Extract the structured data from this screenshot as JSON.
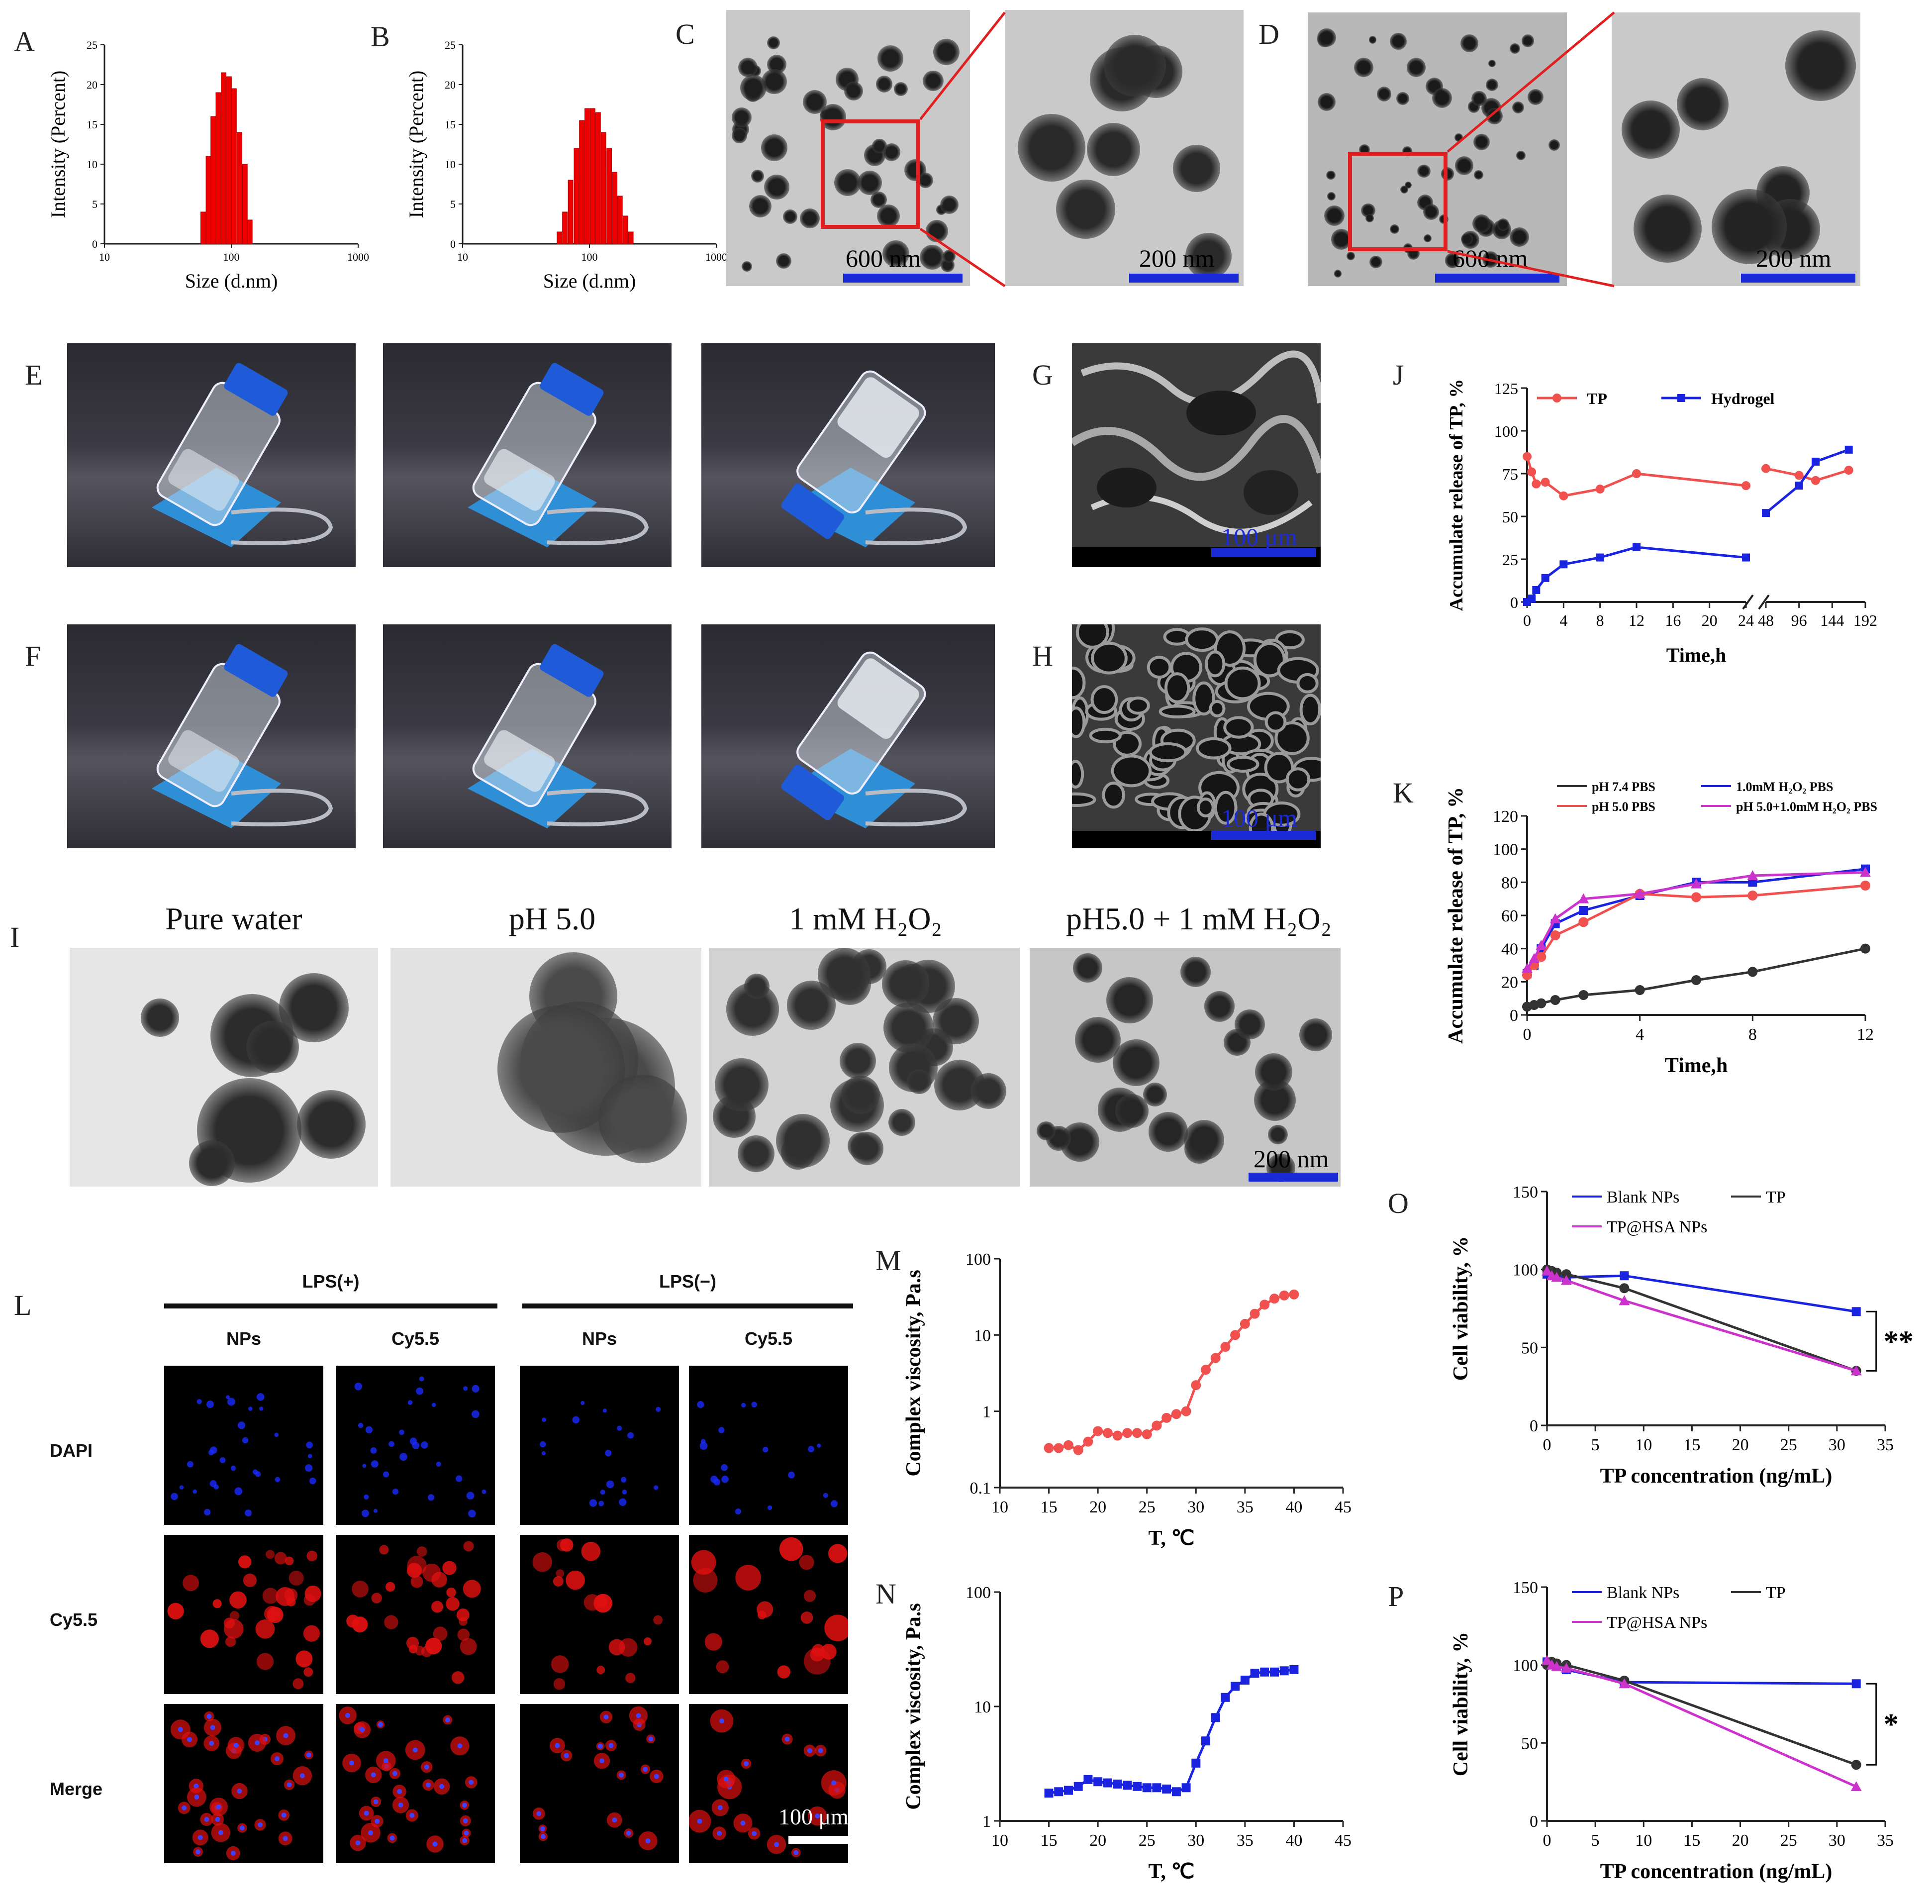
{
  "panels": {
    "A": "A",
    "B": "B",
    "C": "C",
    "D": "D",
    "E": "E",
    "F": "F",
    "G": "G",
    "H": "H",
    "I": "I",
    "J": "J",
    "K": "K",
    "L": "L",
    "M": "M",
    "N": "N",
    "O": "O",
    "P": "P"
  },
  "dls": [
    {
      "xlabel": "Size (d.nm)",
      "ylabel": "Intensity (Percent)",
      "yticks": [
        "0",
        "5",
        "10",
        "15",
        "20",
        "25"
      ],
      "xticks": [
        "10",
        "100",
        "1000"
      ],
      "bins": [
        {
          "x": 60,
          "y": 4
        },
        {
          "x": 66,
          "y": 11
        },
        {
          "x": 72,
          "y": 16
        },
        {
          "x": 79,
          "y": 19
        },
        {
          "x": 87,
          "y": 21.5
        },
        {
          "x": 96,
          "y": 21
        },
        {
          "x": 105,
          "y": 19.5
        },
        {
          "x": 116,
          "y": 14
        },
        {
          "x": 128,
          "y": 10
        },
        {
          "x": 140,
          "y": 3
        }
      ]
    },
    {
      "xlabel": "Size (d.nm)",
      "ylabel": "Intensity (Percent)",
      "yticks": [
        "0",
        "5",
        "10",
        "15",
        "20",
        "25"
      ],
      "xticks": [
        "10",
        "100",
        "1000"
      ],
      "bins": [
        {
          "x": 58,
          "y": 1.5
        },
        {
          "x": 64,
          "y": 4
        },
        {
          "x": 71,
          "y": 8
        },
        {
          "x": 79,
          "y": 12
        },
        {
          "x": 87,
          "y": 15.5
        },
        {
          "x": 96,
          "y": 17
        },
        {
          "x": 106,
          "y": 17
        },
        {
          "x": 117,
          "y": 16.5
        },
        {
          "x": 129,
          "y": 14
        },
        {
          "x": 143,
          "y": 12
        },
        {
          "x": 158,
          "y": 9
        },
        {
          "x": 174,
          "y": 6
        },
        {
          "x": 192,
          "y": 3.5
        },
        {
          "x": 212,
          "y": 1.5
        }
      ]
    }
  ],
  "scalebars": {
    "c_left": "600 nm",
    "c_right": "200 nm",
    "d_left": "600 nm",
    "d_right": "200 nm",
    "g": "100 μm",
    "h": "100 μm",
    "i": "200 nm",
    "l": "100 μm"
  },
  "i_headers": [
    "Pure water",
    "pH 5.0",
    "1 mM H₂O₂",
    "pH5.0 + 1 mM H₂O₂"
  ],
  "l_labels": {
    "lps_pos": "LPS(+)",
    "lps_neg": "LPS(−)",
    "np1": "NPs",
    "cy1": "Cy5.5",
    "np2": "NPs",
    "cy2": "Cy5.5",
    "row1": "DAPI",
    "row2": "Cy5.5",
    "row3": "Merge"
  },
  "chart_data": [
    {
      "id": "J",
      "type": "line",
      "ylabel": "Accumulate release of TP, %",
      "xlabel": "Time,h",
      "ylim": [
        0,
        125
      ],
      "yticks": [
        "0",
        "25",
        "50",
        "75",
        "100",
        "125"
      ],
      "xticks_left": [
        "0",
        "4",
        "8",
        "12",
        "16",
        "20",
        "24"
      ],
      "xticks_right": [
        "48",
        "96",
        "144",
        "192"
      ],
      "series": [
        {
          "name": "TP",
          "color": "#f0504e",
          "left": [
            [
              0,
              85
            ],
            [
              0.5,
              76
            ],
            [
              1,
              69
            ],
            [
              2,
              70
            ],
            [
              4,
              62
            ],
            [
              8,
              66
            ],
            [
              12,
              75
            ],
            [
              24,
              68
            ]
          ],
          "right": [
            [
              48,
              78
            ],
            [
              96,
              74
            ],
            [
              120,
              71
            ],
            [
              168,
              77
            ]
          ]
        },
        {
          "name": "Hydrogel",
          "color": "#1a24e0",
          "left": [
            [
              0,
              0
            ],
            [
              0.5,
              2
            ],
            [
              1,
              7
            ],
            [
              2,
              14
            ],
            [
              4,
              22
            ],
            [
              8,
              26
            ],
            [
              12,
              32
            ],
            [
              24,
              26
            ]
          ],
          "right": [
            [
              48,
              52
            ],
            [
              96,
              68
            ],
            [
              120,
              82
            ],
            [
              168,
              89
            ]
          ]
        }
      ]
    },
    {
      "id": "K",
      "type": "line",
      "ylabel": "Accumulate release of TP, %",
      "xlabel": "Time,h",
      "ylim": [
        0,
        120
      ],
      "yticks": [
        "0",
        "20",
        "40",
        "60",
        "80",
        "100",
        "120"
      ],
      "xticks": [
        "0",
        "4",
        "8",
        "12"
      ],
      "legend": [
        "pH 7.4 PBS",
        "1.0mM H₂O₂ PBS",
        "pH 5.0 PBS",
        "pH 5.0+1.0mM H₂O₂ PBS"
      ],
      "series": [
        {
          "name": "pH 7.4 PBS",
          "color": "#333333",
          "x": [
            0,
            0.25,
            0.5,
            1,
            2,
            4,
            6,
            8,
            12
          ],
          "y": [
            5,
            6,
            7,
            9,
            12,
            15,
            21,
            26,
            40
          ]
        },
        {
          "name": "1.0mM H₂O₂ PBS",
          "color": "#1a24e0",
          "x": [
            0,
            0.25,
            0.5,
            1,
            2,
            4,
            6,
            8,
            12
          ],
          "y": [
            25,
            30,
            40,
            55,
            63,
            72,
            80,
            80,
            88
          ]
        },
        {
          "name": "pH 5.0 PBS",
          "color": "#f0504e",
          "x": [
            0,
            0.25,
            0.5,
            1,
            2,
            4,
            6,
            8,
            12
          ],
          "y": [
            24,
            30,
            35,
            48,
            56,
            73,
            71,
            72,
            78
          ]
        },
        {
          "name": "pH 5.0+1.0mM H₂O₂ PBS",
          "color": "#cc33cc",
          "x": [
            0,
            0.25,
            0.5,
            1,
            2,
            4,
            6,
            8,
            12
          ],
          "y": [
            28,
            34,
            42,
            58,
            70,
            73,
            79,
            84,
            86
          ]
        }
      ]
    },
    {
      "id": "M",
      "type": "line",
      "ylabel": "Complex viscosity, Pa.s",
      "xlabel": "T, ℃",
      "yscale": "log",
      "ylim": [
        0.1,
        100
      ],
      "yticks": [
        "0.1",
        "1",
        "10",
        "100"
      ],
      "xticks": [
        "10",
        "15",
        "20",
        "25",
        "30",
        "35",
        "40",
        "45"
      ],
      "series": [
        {
          "name": "M",
          "color": "#f0504e",
          "x": [
            15,
            16,
            17,
            18,
            19,
            20,
            21,
            22,
            23,
            24,
            25,
            26,
            27,
            28,
            29,
            30,
            31,
            32,
            33,
            34,
            35,
            36,
            37,
            38,
            39,
            40
          ],
          "y": [
            0.33,
            0.33,
            0.36,
            0.31,
            0.4,
            0.55,
            0.52,
            0.48,
            0.52,
            0.52,
            0.5,
            0.65,
            0.82,
            0.92,
            1.0,
            2.2,
            3.5,
            5,
            7,
            10,
            14,
            19,
            25,
            30,
            33,
            34
          ]
        }
      ]
    },
    {
      "id": "N",
      "type": "line",
      "ylabel": "Complex viscosity, Pa.s",
      "xlabel": "T, ℃",
      "yscale": "log",
      "ylim": [
        1,
        100
      ],
      "yticks": [
        "1",
        "10",
        "100"
      ],
      "xticks": [
        "10",
        "15",
        "20",
        "25",
        "30",
        "35",
        "40",
        "45"
      ],
      "series": [
        {
          "name": "N",
          "color": "#1a24e0",
          "x": [
            15,
            16,
            17,
            18,
            19,
            20,
            21,
            22,
            23,
            24,
            25,
            26,
            27,
            28,
            29,
            30,
            31,
            32,
            33,
            34,
            35,
            36,
            37,
            38,
            39,
            40
          ],
          "y": [
            1.75,
            1.8,
            1.85,
            2.0,
            2.3,
            2.2,
            2.15,
            2.1,
            2.05,
            2.0,
            1.95,
            1.95,
            1.9,
            1.8,
            1.95,
            3.2,
            5,
            8,
            12,
            15,
            17,
            19.5,
            20,
            20,
            20.5,
            21
          ]
        }
      ]
    },
    {
      "id": "O",
      "type": "line",
      "ylabel": "Cell viability, %",
      "xlabel": "TP concentration (ng/mL)",
      "ylim": [
        0,
        150
      ],
      "yticks": [
        "0",
        "50",
        "100",
        "150"
      ],
      "xticks": [
        "0",
        "5",
        "10",
        "15",
        "20",
        "25",
        "30",
        "35"
      ],
      "legend": [
        "Blank NPs",
        "TP",
        "TP@HSA NPs"
      ],
      "significance": "**",
      "series": [
        {
          "name": "Blank NPs",
          "color": "#1a24e0",
          "x": [
            0,
            0.5,
            1,
            2,
            8,
            32
          ],
          "y": [
            97,
            97,
            96,
            95,
            96,
            73
          ]
        },
        {
          "name": "TP",
          "color": "#333333",
          "x": [
            0,
            0.5,
            1,
            2,
            8,
            32
          ],
          "y": [
            100,
            99,
            98,
            97,
            88,
            35
          ]
        },
        {
          "name": "TP@HSA NPs",
          "color": "#cc33cc",
          "x": [
            0,
            0.5,
            1,
            2,
            8,
            32
          ],
          "y": [
            99,
            96,
            95,
            93,
            80,
            35
          ]
        }
      ]
    },
    {
      "id": "P",
      "type": "line",
      "ylabel": "Cell viability, %",
      "xlabel": "TP concentration (ng/mL)",
      "ylim": [
        0,
        150
      ],
      "yticks": [
        "0",
        "50",
        "100",
        "150"
      ],
      "xticks": [
        "0",
        "5",
        "10",
        "15",
        "20",
        "25",
        "30",
        "35"
      ],
      "legend": [
        "Blank NPs",
        "TP",
        "TP@HSA NPs"
      ],
      "significance": "*",
      "series": [
        {
          "name": "Blank NPs",
          "color": "#1a24e0",
          "x": [
            0,
            0.5,
            1,
            2,
            8,
            32
          ],
          "y": [
            102,
            101,
            100,
            97,
            89,
            88
          ]
        },
        {
          "name": "TP",
          "color": "#333333",
          "x": [
            0,
            0.5,
            1,
            2,
            8,
            32
          ],
          "y": [
            100,
            102,
            101,
            100,
            90,
            36
          ]
        },
        {
          "name": "TP@HSA NPs",
          "color": "#cc33cc",
          "x": [
            0,
            0.5,
            1,
            2,
            8,
            32
          ],
          "y": [
            103,
            100,
            99,
            98,
            88,
            22
          ]
        }
      ]
    }
  ]
}
